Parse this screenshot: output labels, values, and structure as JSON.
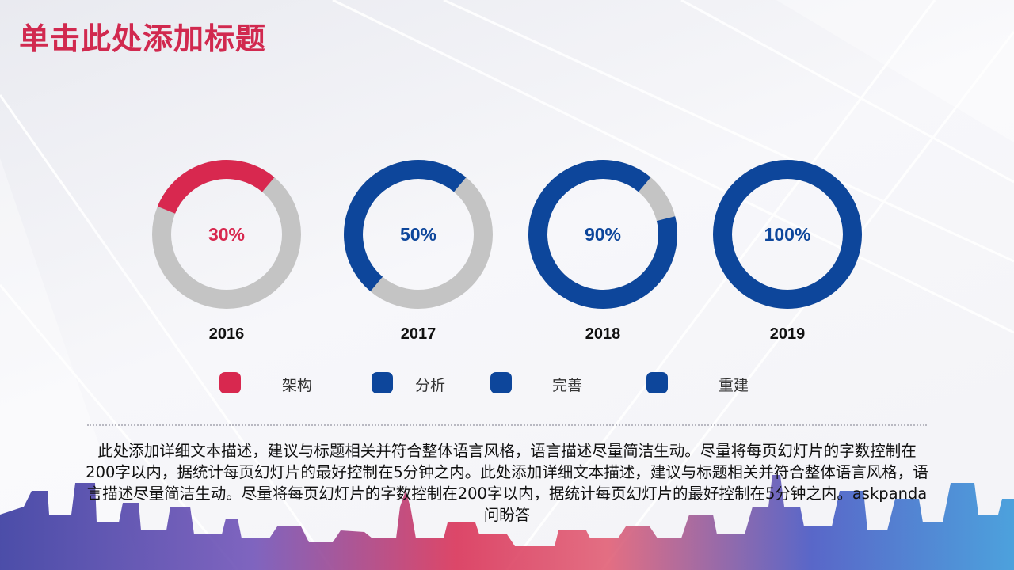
{
  "title": "单击此处添加标题",
  "chart_data": {
    "type": "donut",
    "categories": [
      "2016",
      "2017",
      "2018",
      "2019"
    ],
    "values": [
      30,
      50,
      90,
      100
    ],
    "value_labels": [
      "30%",
      "50%",
      "90%",
      "100%"
    ],
    "colors": [
      "#d8284f",
      "#0d469b",
      "#0d469b",
      "#0d469b"
    ],
    "track_color": "#c4c4c4",
    "legend": [
      {
        "label": "架构",
        "color": "#d8284f"
      },
      {
        "label": "分析",
        "color": "#0d469b"
      },
      {
        "label": "完善",
        "color": "#0d469b"
      },
      {
        "label": "重建",
        "color": "#0d469b"
      }
    ]
  },
  "description": "此处添加详细文本描述，建议与标题相关并符合整体语言风格，语言描述尽量简洁生动。尽量将每页幻灯片的字数控制在200字以内，据统计每页幻灯片的最好控制在5分钟之内。此处添加详细文本描述，建议与标题相关并符合整体语言风格，语言描述尽量简洁生动。尽量将每页幻灯片的字数控制在200字以内，据统计每页幻灯片的最好控制在5分钟之内。askpanda问盼答"
}
